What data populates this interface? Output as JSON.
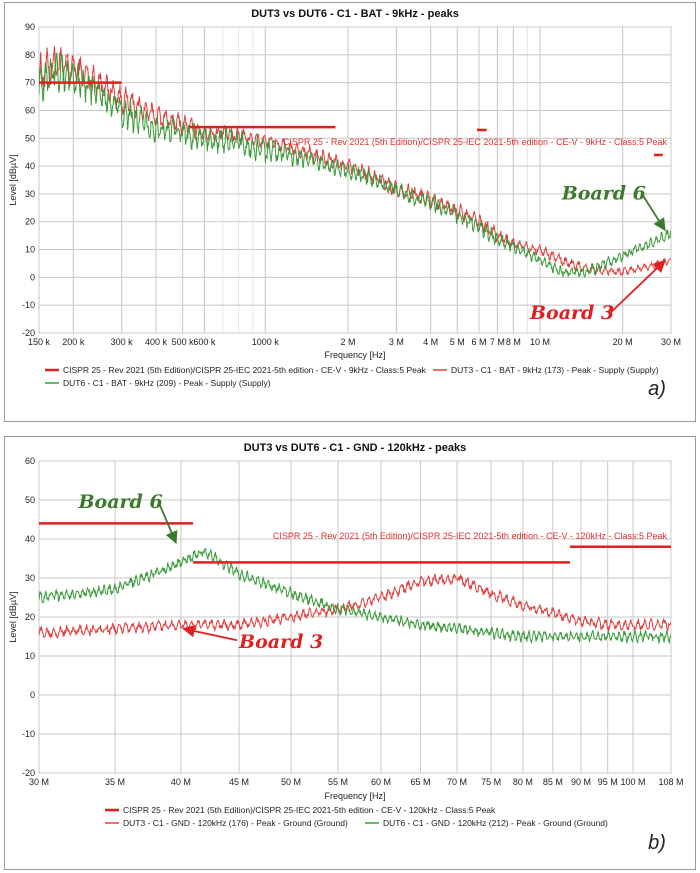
{
  "chart_data": [
    {
      "type": "line",
      "panel_label": "a)",
      "title": "DUT3 vs DUT6 - C1 - BAT - 9kHz - peaks",
      "xlabel": "Frequency [Hz]",
      "ylabel": "Level [dBµV]",
      "xscale": "log",
      "xlim": [
        150000,
        30000000
      ],
      "ylim": [
        -20,
        90
      ],
      "grid": true,
      "legend_position": "bottom",
      "x_tick_values": [
        150000,
        200000,
        300000,
        400000,
        500000,
        600000,
        1000000,
        2000000,
        3000000,
        4000000,
        5000000,
        6000000,
        7000000,
        8000000,
        10000000,
        20000000,
        30000000
      ],
      "x_tick_labels": [
        "150 k",
        "200 k",
        "300 k",
        "400 k",
        "500 k",
        "600 k",
        "1000 k",
        "2 M",
        "3 M",
        "4 M",
        "5 M",
        "6 M",
        "7 M",
        "8 M",
        "10 M",
        "20 M",
        "30 M"
      ],
      "y_ticks": [
        -20,
        -10,
        0,
        10,
        20,
        30,
        40,
        50,
        60,
        70,
        80,
        90
      ],
      "limit_annotation": "CISPR 25 - Rev 2021 (5th Edition)/CISPR 25-IEC 2021-5th edition - CE-V - 9kHz - Class:5 Peak",
      "limit_segments": [
        {
          "x": [
            150000,
            300000
          ],
          "y": 70
        },
        {
          "x": [
            530000,
            1800000
          ],
          "y": 54
        },
        {
          "x": [
            5900000,
            6400000
          ],
          "y": 53
        },
        {
          "x": [
            26000000,
            28000000
          ],
          "y": 44
        }
      ],
      "series": [
        {
          "name": "DUT3 - C1 - BAT - 9kHz (173) - Peak - Supply (Supply)",
          "color": "#e04040",
          "x": [
            150000,
            170000,
            200000,
            250000,
            300000,
            400000,
            500000,
            600000,
            800000,
            1000000,
            1500000,
            2000000,
            2500000,
            3000000,
            4000000,
            5000000,
            6000000,
            7000000,
            8000000,
            10000000,
            12000000,
            15000000,
            20000000,
            25000000,
            30000000
          ],
          "y": [
            72,
            77,
            75,
            70,
            64,
            58,
            55,
            52,
            51,
            49,
            44,
            40,
            36,
            32,
            28,
            24,
            20,
            15,
            12,
            10,
            6,
            3,
            2,
            4,
            6
          ],
          "ripple": [
            8,
            7,
            6,
            5,
            5,
            4,
            4,
            3,
            3,
            3,
            3,
            3,
            3,
            3,
            3,
            3,
            3,
            3,
            2,
            2,
            2,
            2,
            1.5,
            1.5,
            1.5
          ]
        },
        {
          "name": "DUT6 - C1 - BAT - 9kHz (209) - Peak - Supply (Supply)",
          "color": "#3a9a3a",
          "x": [
            150000,
            170000,
            200000,
            250000,
            300000,
            400000,
            500000,
            600000,
            800000,
            1000000,
            1500000,
            2000000,
            2500000,
            3000000,
            4000000,
            5000000,
            6000000,
            7000000,
            8000000,
            10000000,
            12000000,
            15000000,
            20000000,
            25000000,
            30000000
          ],
          "y": [
            70,
            75,
            72,
            66,
            60,
            53,
            52,
            50,
            48,
            46,
            42,
            38,
            35,
            31,
            27,
            22,
            18,
            14,
            11,
            6,
            2,
            2,
            8,
            12,
            16
          ],
          "ripple": [
            9,
            8,
            7,
            6,
            6,
            5,
            5,
            5,
            5,
            5,
            3,
            3,
            3,
            3,
            3,
            3,
            3,
            3,
            2,
            2,
            2,
            2,
            2,
            2,
            2
          ]
        }
      ],
      "annotations": [
        {
          "text": "Board 6",
          "color": "#3a7a2a",
          "text_x": 12000000,
          "text_y": 28,
          "arrow_x": 28500000,
          "arrow_y": 17
        },
        {
          "text": "Board 3",
          "color": "#e02020",
          "text_x": 9200000,
          "text_y": -15,
          "arrow_x": 28500000,
          "arrow_y": 6
        }
      ],
      "legend": [
        {
          "label": "CISPR 25 - Rev 2021 (5th Edition)/CISPR 25-IEC 2021-5th edition - CE-V - 9kHz - Class:5 Peak",
          "color": "#e02020",
          "thick": true
        },
        {
          "label": "DUT3 - C1 - BAT - 9kHz (173) - Peak - Supply (Supply)",
          "color": "#e04040",
          "thick": false
        },
        {
          "label": "DUT6 - C1 - BAT - 9kHz (209) - Peak - Supply (Supply)",
          "color": "#3a9a3a",
          "thick": false
        }
      ]
    },
    {
      "type": "line",
      "panel_label": "b)",
      "title": "DUT3 vs DUT6 - C1 - GND - 120kHz - peaks",
      "xlabel": "Frequency [Hz]",
      "ylabel": "Level [dBµV]",
      "xscale": "log",
      "xlim": [
        30000000,
        108000000
      ],
      "ylim": [
        -20,
        60
      ],
      "grid": true,
      "legend_position": "bottom",
      "x_tick_values": [
        30000000,
        35000000,
        40000000,
        45000000,
        50000000,
        55000000,
        60000000,
        65000000,
        70000000,
        75000000,
        80000000,
        85000000,
        90000000,
        95000000,
        100000000,
        108000000
      ],
      "x_tick_labels": [
        "30 M",
        "35 M",
        "40 M",
        "45 M",
        "50 M",
        "55 M",
        "60 M",
        "65 M",
        "70 M",
        "75 M",
        "80 M",
        "85 M",
        "90 M",
        "95 M",
        "100 M",
        "108 M"
      ],
      "y_ticks": [
        -20,
        -10,
        0,
        10,
        20,
        30,
        40,
        50,
        60
      ],
      "limit_annotation": "CISPR 25 - Rev 2021 (5th Edition)/CISPR 25-IEC 2021-5th edition - CE-V - 120kHz - Class:5 Peak",
      "limit_segments": [
        {
          "x": [
            30000000,
            41000000
          ],
          "y": 44
        },
        {
          "x": [
            41000000,
            88000000
          ],
          "y": 34
        },
        {
          "x": [
            88000000,
            108000000
          ],
          "y": 38
        }
      ],
      "series": [
        {
          "name": "DUT3 - C1 - GND - 120kHz (176) - Peak - Ground (Ground)",
          "color": "#e04040",
          "x": [
            30000000,
            35000000,
            40000000,
            45000000,
            50000000,
            55000000,
            60000000,
            65000000,
            70000000,
            75000000,
            80000000,
            85000000,
            90000000,
            95000000,
            100000000,
            108000000
          ],
          "y": [
            16,
            17,
            18,
            18,
            20,
            22,
            25,
            29,
            30,
            26,
            23,
            21,
            19,
            18,
            18,
            18
          ],
          "ripple": [
            1.5,
            1.5,
            1.5,
            1.5,
            1.5,
            1.5,
            1.5,
            1.5,
            1.5,
            1.5,
            1.5,
            1.5,
            1.5,
            1.5,
            1.5,
            1.5
          ]
        },
        {
          "name": "DUT6 - C1 - GND - 120kHz (212) - Peak - Ground (Ground)",
          "color": "#3a9a3a",
          "x": [
            30000000,
            35000000,
            40000000,
            42000000,
            45000000,
            50000000,
            55000000,
            60000000,
            65000000,
            70000000,
            75000000,
            80000000,
            85000000,
            90000000,
            95000000,
            100000000,
            108000000
          ],
          "y": [
            25,
            27,
            34,
            37,
            31,
            26,
            22,
            20,
            18,
            17,
            16,
            15,
            15,
            15,
            15,
            15,
            15
          ],
          "ripple": [
            1.5,
            1.5,
            1.5,
            1.5,
            1.5,
            1.5,
            1.5,
            1.5,
            1.5,
            1.5,
            1.5,
            1.5,
            1.5,
            1.5,
            1.5,
            1.5,
            1.5
          ]
        }
      ],
      "annotations": [
        {
          "text": "Board 6",
          "color": "#3a7a2a",
          "text_x": 32500000,
          "text_y": 48,
          "arrow_x": 39600000,
          "arrow_y": 39
        },
        {
          "text": "Board 3",
          "color": "#e02020",
          "text_x": 45000000,
          "text_y": 12,
          "arrow_x": 40200000,
          "arrow_y": 17
        }
      ],
      "legend": [
        {
          "label": "CISPR 25 - Rev 2021 (5th Edition)/CISPR 25-IEC 2021-5th edition - CE-V - 120kHz - Class:5 Peak",
          "color": "#e02020",
          "thick": true
        },
        {
          "label": "DUT3 - C1 - GND - 120kHz (176) - Peak - Ground (Ground)",
          "color": "#e04040",
          "thick": false
        },
        {
          "label": "DUT6 - C1 - GND - 120kHz (212) - Peak - Ground (Ground)",
          "color": "#3a9a3a",
          "thick": false
        }
      ]
    }
  ]
}
